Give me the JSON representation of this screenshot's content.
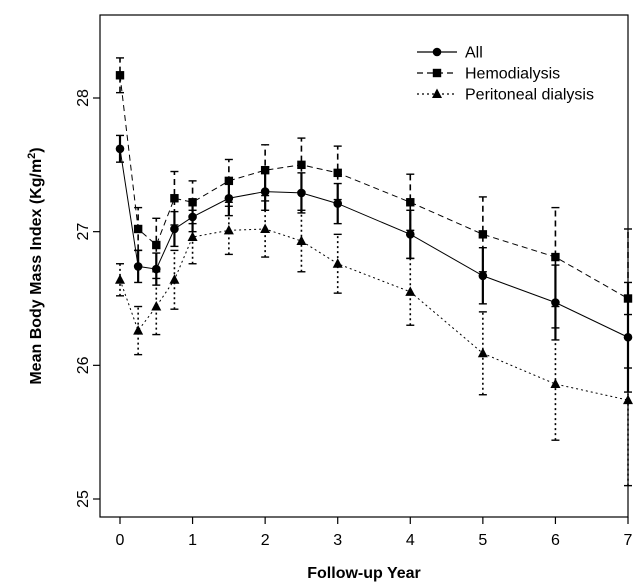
{
  "chart_data": {
    "type": "line",
    "xlabel": "Follow-up Year",
    "ylabel_main": "Mean Body Mass Index (Kg/m",
    "ylabel_sup": "2",
    "ylabel_close": ")",
    "xlim": [
      -0.25,
      7.0
    ],
    "ylim": [
      24.9,
      28.7
    ],
    "x_ticks": [
      0,
      1,
      2,
      3,
      4,
      5,
      6,
      7
    ],
    "x_tick_labels": [
      "0",
      "1",
      "2",
      "3",
      "4",
      "5",
      "6",
      "7"
    ],
    "y_ticks": [
      25,
      26,
      27,
      28
    ],
    "y_tick_labels": [
      "25",
      "26",
      "27",
      "28"
    ],
    "grid": false,
    "legend_position": "top-right",
    "x": [
      0,
      0.25,
      0.5,
      0.75,
      1,
      1.5,
      2,
      2.5,
      3,
      4,
      5,
      6,
      7
    ],
    "series": [
      {
        "name": "All",
        "line_style": "solid",
        "marker": "circle",
        "values": [
          27.62,
          26.74,
          26.72,
          27.02,
          27.11,
          27.25,
          27.3,
          27.29,
          27.21,
          26.98,
          26.67,
          26.47,
          26.21
        ],
        "errors": [
          0.1,
          0.12,
          0.12,
          0.13,
          0.11,
          0.13,
          0.14,
          0.15,
          0.15,
          0.18,
          0.21,
          0.28,
          0.41
        ]
      },
      {
        "name": "Hemodialysis",
        "line_style": "dashed",
        "marker": "square",
        "values": [
          28.17,
          27.02,
          26.9,
          27.25,
          27.22,
          27.38,
          27.46,
          27.5,
          27.44,
          27.22,
          26.98,
          26.81,
          26.5
        ],
        "errors": [
          0.13,
          0.16,
          0.2,
          0.2,
          0.16,
          0.16,
          0.19,
          0.2,
          0.2,
          0.21,
          0.28,
          0.37,
          0.52
        ]
      },
      {
        "name": "Peritoneal dialysis",
        "line_style": "dotted",
        "marker": "triangle",
        "values": [
          26.64,
          26.26,
          26.44,
          26.64,
          26.96,
          27.01,
          27.02,
          26.93,
          26.76,
          26.55,
          26.09,
          25.86,
          25.74
        ],
        "errors": [
          0.12,
          0.18,
          0.21,
          0.22,
          0.2,
          0.18,
          0.21,
          0.23,
          0.22,
          0.25,
          0.31,
          0.42,
          0.64
        ]
      }
    ]
  }
}
